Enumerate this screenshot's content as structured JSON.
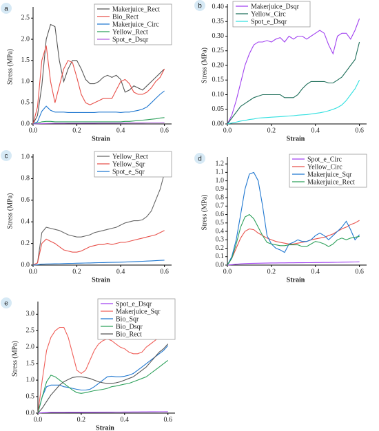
{
  "chart_data": [
    {
      "type": "line",
      "label": "a",
      "xlabel": "Strain",
      "ylabel": "Stress (MPa)",
      "legend": "upper right",
      "xlim": [
        0,
        0.62
      ],
      "ylim": [
        0,
        2.7
      ],
      "xticks": [
        {
          "value": 0,
          "label": "0.0"
        },
        0.2,
        0.4,
        0.6
      ],
      "yticks": [
        {
          "value": 0,
          "label": "0.0"
        },
        0.5,
        {
          "value": 1,
          "label": "1.0"
        },
        1.5,
        {
          "value": 2,
          "label": "2.0"
        },
        2.5
      ],
      "x": [
        0,
        0.02,
        0.04,
        0.06,
        0.08,
        0.1,
        0.12,
        0.14,
        0.16,
        0.18,
        0.2,
        0.22,
        0.24,
        0.26,
        0.28,
        0.3,
        0.32,
        0.34,
        0.36,
        0.38,
        0.4,
        0.42,
        0.44,
        0.46,
        0.48,
        0.5,
        0.52,
        0.54,
        0.56,
        0.58,
        0.6
      ],
      "series": [
        {
          "name": "Makerjuice_Rect",
          "color": "#555555",
          "values": [
            0,
            0.2,
            0.9,
            2.0,
            2.35,
            2.3,
            1.5,
            1.0,
            1.3,
            1.5,
            1.5,
            1.3,
            1.05,
            0.95,
            0.95,
            1.0,
            1.1,
            1.15,
            1.1,
            1.15,
            1.05,
            0.75,
            0.8,
            0.9,
            0.85,
            0.8,
            0.9,
            1.0,
            1.1,
            1.2,
            1.3
          ]
        },
        {
          "name": "Bio_Rect",
          "color": "#e8504a",
          "values": [
            0,
            0.4,
            1.5,
            1.85,
            1.0,
            0.5,
            0.9,
            1.3,
            1.5,
            1.45,
            1.1,
            0.7,
            0.5,
            0.45,
            0.5,
            0.55,
            0.6,
            0.6,
            0.6,
            0.8,
            1.0,
            1.05,
            0.95,
            0.75,
            0.7,
            0.7,
            0.75,
            0.85,
            1.0,
            1.1,
            1.3
          ]
        },
        {
          "name": "Makerjuice_Circ",
          "color": "#1f77d0",
          "values": [
            0,
            0.05,
            0.3,
            0.42,
            0.32,
            0.28,
            0.28,
            0.28,
            0.27,
            0.27,
            0.27,
            0.27,
            0.27,
            0.27,
            0.27,
            0.28,
            0.28,
            0.28,
            0.28,
            0.28,
            0.27,
            0.28,
            0.28,
            0.3,
            0.32,
            0.35,
            0.4,
            0.5,
            0.6,
            0.7,
            0.78
          ]
        },
        {
          "name": "Yellow_Rect",
          "color": "#2ca05a",
          "values": [
            0,
            0.02,
            0.05,
            0.06,
            0.06,
            0.05,
            0.05,
            0.05,
            0.05,
            0.05,
            0.05,
            0.05,
            0.05,
            0.05,
            0.05,
            0.05,
            0.05,
            0.05,
            0.05,
            0.05,
            0.05,
            0.06,
            0.06,
            0.07,
            0.08,
            0.09,
            0.1,
            0.11,
            0.12,
            0.14,
            0.15
          ]
        },
        {
          "name": "Spot_e_Dsqr",
          "color": "#b05ee0",
          "values": [
            0,
            0.005,
            0.01,
            0.012,
            0.013,
            0.014,
            0.015,
            0.015,
            0.016,
            0.016,
            0.017,
            0.017,
            0.018,
            0.018,
            0.018,
            0.019,
            0.019,
            0.02,
            0.02,
            0.02,
            0.021,
            0.021,
            0.022,
            0.022,
            0.023,
            0.023,
            0.024,
            0.024,
            0.025,
            0.025,
            0.026
          ]
        }
      ]
    },
    {
      "type": "line",
      "label": "b",
      "xlabel": "Strain",
      "ylabel": "Stress (MPa)",
      "legend": "upper left",
      "xlim": [
        0,
        0.62
      ],
      "ylim": [
        0,
        0.4
      ],
      "xticks": [
        {
          "value": 0,
          "label": "0.0"
        },
        0.2,
        0.4,
        0.6
      ],
      "yticks": [
        {
          "value": 0,
          "label": "0.00"
        },
        0.05,
        {
          "value": 0.1,
          "label": "0.10"
        },
        0.15,
        {
          "value": 0.2,
          "label": "0.20"
        },
        0.25,
        {
          "value": 0.3,
          "label": "0.30"
        },
        0.35,
        {
          "value": 0.4,
          "label": "0.40"
        }
      ],
      "x": [
        0,
        0.02,
        0.04,
        0.06,
        0.08,
        0.1,
        0.12,
        0.14,
        0.16,
        0.18,
        0.2,
        0.22,
        0.24,
        0.26,
        0.28,
        0.3,
        0.32,
        0.34,
        0.36,
        0.38,
        0.4,
        0.42,
        0.44,
        0.46,
        0.48,
        0.5,
        0.52,
        0.54,
        0.56,
        0.58,
        0.6
      ],
      "series": [
        {
          "name": "Makerjuice_Dsqr",
          "color": "#a040f0",
          "values": [
            0,
            0.03,
            0.08,
            0.14,
            0.2,
            0.24,
            0.27,
            0.28,
            0.28,
            0.285,
            0.28,
            0.29,
            0.295,
            0.28,
            0.3,
            0.29,
            0.3,
            0.3,
            0.29,
            0.3,
            0.31,
            0.32,
            0.31,
            0.27,
            0.24,
            0.3,
            0.31,
            0.31,
            0.29,
            0.32,
            0.36
          ]
        },
        {
          "name": "Yellow_Circ",
          "color": "#1f6f5a",
          "values": [
            0,
            0.02,
            0.04,
            0.06,
            0.07,
            0.08,
            0.09,
            0.095,
            0.1,
            0.1,
            0.1,
            0.1,
            0.1,
            0.09,
            0.09,
            0.09,
            0.1,
            0.12,
            0.135,
            0.145,
            0.145,
            0.145,
            0.145,
            0.14,
            0.14,
            0.15,
            0.16,
            0.18,
            0.2,
            0.22,
            0.28
          ]
        },
        {
          "name": "Spot_e_Dsqr",
          "color": "#30e0e0",
          "values": [
            0,
            0.003,
            0.006,
            0.01,
            0.012,
            0.015,
            0.017,
            0.02,
            0.021,
            0.022,
            0.023,
            0.024,
            0.025,
            0.026,
            0.027,
            0.028,
            0.03,
            0.031,
            0.032,
            0.034,
            0.036,
            0.038,
            0.041,
            0.045,
            0.05,
            0.056,
            0.065,
            0.08,
            0.1,
            0.12,
            0.15
          ]
        }
      ]
    },
    {
      "type": "line",
      "label": "c",
      "xlabel": "Strain",
      "ylabel": "Stress (MPa)",
      "legend": "upper right",
      "xlim": [
        0,
        0.62
      ],
      "ylim": [
        0,
        1.0
      ],
      "xticks": [
        {
          "value": 0,
          "label": "0.0"
        },
        0.2,
        0.4,
        0.6
      ],
      "yticks": [
        {
          "value": 0,
          "label": "0.0"
        },
        0.2,
        0.4,
        0.6,
        0.8,
        {
          "value": 1,
          "label": "1.0"
        }
      ],
      "x": [
        0,
        0.02,
        0.04,
        0.06,
        0.08,
        0.1,
        0.12,
        0.14,
        0.16,
        0.18,
        0.2,
        0.22,
        0.24,
        0.26,
        0.28,
        0.3,
        0.32,
        0.34,
        0.36,
        0.38,
        0.4,
        0.42,
        0.44,
        0.46,
        0.48,
        0.5,
        0.52,
        0.54,
        0.56,
        0.58,
        0.6
      ],
      "series": [
        {
          "name": "Yellow_Rect",
          "color": "#666666",
          "values": [
            0,
            0.02,
            0.3,
            0.35,
            0.34,
            0.33,
            0.32,
            0.3,
            0.28,
            0.27,
            0.26,
            0.26,
            0.27,
            0.28,
            0.3,
            0.31,
            0.32,
            0.33,
            0.34,
            0.35,
            0.37,
            0.39,
            0.4,
            0.41,
            0.41,
            0.42,
            0.45,
            0.5,
            0.6,
            0.7,
            0.85
          ]
        },
        {
          "name": "Yellow_Sqr",
          "color": "#e8504a",
          "values": [
            0,
            0.02,
            0.2,
            0.24,
            0.22,
            0.2,
            0.17,
            0.14,
            0.13,
            0.12,
            0.12,
            0.13,
            0.15,
            0.17,
            0.18,
            0.19,
            0.19,
            0.2,
            0.19,
            0.2,
            0.21,
            0.21,
            0.22,
            0.23,
            0.24,
            0.25,
            0.26,
            0.27,
            0.28,
            0.3,
            0.32
          ]
        },
        {
          "name": "Spot_e_Sqr",
          "color": "#1f77d0",
          "values": [
            0,
            0.003,
            0.008,
            0.01,
            0.011,
            0.012,
            0.013,
            0.014,
            0.015,
            0.016,
            0.017,
            0.018,
            0.019,
            0.02,
            0.021,
            0.022,
            0.023,
            0.024,
            0.025,
            0.026,
            0.027,
            0.028,
            0.03,
            0.031,
            0.033,
            0.035,
            0.037,
            0.039,
            0.041,
            0.043,
            0.045
          ]
        }
      ]
    },
    {
      "type": "line",
      "label": "d",
      "xlabel": "Strain",
      "ylabel": "Stress (MPa)",
      "legend": "upper right",
      "xlim": [
        0,
        0.62
      ],
      "ylim": [
        0,
        1.25
      ],
      "xticks": [
        {
          "value": 0,
          "label": "0.0"
        },
        0.2,
        0.4,
        0.6
      ],
      "yticks": [
        {
          "value": 0,
          "label": "0.0"
        },
        0.1,
        0.2,
        0.3,
        0.4,
        0.5,
        0.6,
        0.7,
        0.8,
        0.9,
        {
          "value": 1,
          "label": "1.0"
        },
        1.1,
        1.2
      ],
      "x": [
        0,
        0.02,
        0.04,
        0.06,
        0.08,
        0.1,
        0.12,
        0.14,
        0.16,
        0.18,
        0.2,
        0.22,
        0.24,
        0.26,
        0.28,
        0.3,
        0.32,
        0.34,
        0.36,
        0.38,
        0.4,
        0.42,
        0.44,
        0.46,
        0.48,
        0.5,
        0.52,
        0.54,
        0.56,
        0.58,
        0.6
      ],
      "series": [
        {
          "name": "Spot_e_Circ",
          "color": "#a040f0",
          "values": [
            0,
            0.005,
            0.01,
            0.015,
            0.018,
            0.02,
            0.021,
            0.022,
            0.023,
            0.024,
            0.025,
            0.025,
            0.026,
            0.026,
            0.027,
            0.027,
            0.028,
            0.028,
            0.029,
            0.029,
            0.03,
            0.03,
            0.031,
            0.031,
            0.032,
            0.033,
            0.034,
            0.035,
            0.036,
            0.037,
            0.038
          ]
        },
        {
          "name": "Yellow_Circ",
          "color": "#e8504a",
          "values": [
            0,
            0.08,
            0.2,
            0.32,
            0.4,
            0.43,
            0.42,
            0.38,
            0.35,
            0.32,
            0.3,
            0.28,
            0.27,
            0.26,
            0.25,
            0.25,
            0.26,
            0.27,
            0.28,
            0.3,
            0.31,
            0.32,
            0.33,
            0.35,
            0.37,
            0.4,
            0.43,
            0.45,
            0.48,
            0.5,
            0.53
          ]
        },
        {
          "name": "Makerjuice_Sqr",
          "color": "#1f77d0",
          "values": [
            0,
            0.1,
            0.3,
            0.6,
            0.9,
            1.08,
            1.1,
            1.0,
            0.7,
            0.35,
            0.25,
            0.2,
            0.18,
            0.15,
            0.25,
            0.27,
            0.3,
            0.28,
            0.28,
            0.3,
            0.35,
            0.38,
            0.35,
            0.3,
            0.35,
            0.4,
            0.45,
            0.52,
            0.42,
            0.3,
            0.36
          ]
        },
        {
          "name": "Makerjuice_Rect",
          "color": "#2ca05a",
          "values": [
            0,
            0.08,
            0.25,
            0.45,
            0.57,
            0.6,
            0.55,
            0.45,
            0.35,
            0.27,
            0.25,
            0.24,
            0.23,
            0.23,
            0.24,
            0.24,
            0.24,
            0.22,
            0.22,
            0.25,
            0.28,
            0.27,
            0.25,
            0.22,
            0.25,
            0.3,
            0.32,
            0.3,
            0.32,
            0.33,
            0.34
          ]
        }
      ]
    },
    {
      "type": "line",
      "label": "e",
      "xlabel": "Strain",
      "ylabel": "Stress (MPa)",
      "legend": "upper right",
      "xlim": [
        0,
        0.62
      ],
      "ylim": [
        0,
        3.3
      ],
      "xticks": [
        {
          "value": 0,
          "label": "0.0"
        },
        0.2,
        0.4,
        0.6
      ],
      "yticks": [
        {
          "value": 0,
          "label": "0.0"
        },
        0.5,
        {
          "value": 1,
          "label": "1.0"
        },
        1.5,
        {
          "value": 2,
          "label": "2.0"
        },
        2.5,
        {
          "value": 3,
          "label": "3.0"
        }
      ],
      "x": [
        0,
        0.02,
        0.04,
        0.06,
        0.08,
        0.1,
        0.12,
        0.14,
        0.16,
        0.18,
        0.2,
        0.22,
        0.24,
        0.26,
        0.28,
        0.3,
        0.32,
        0.34,
        0.36,
        0.38,
        0.4,
        0.42,
        0.44,
        0.46,
        0.48,
        0.5,
        0.52,
        0.54,
        0.56,
        0.58,
        0.6
      ],
      "series": [
        {
          "name": "Spot_e_Dsqr",
          "color": "#a040f0",
          "values": [
            0,
            0.01,
            0.015,
            0.02,
            0.02,
            0.02,
            0.021,
            0.022,
            0.022,
            0.023,
            0.024,
            0.025,
            0.025,
            0.026,
            0.027,
            0.028,
            0.029,
            0.03,
            0.031,
            0.032,
            0.033,
            0.034,
            0.035,
            0.036,
            0.037,
            0.038,
            0.039,
            0.04,
            0.041,
            0.042,
            0.043
          ]
        },
        {
          "name": "Makerjuice_Sqr",
          "color": "#f0605a",
          "values": [
            0,
            1.0,
            1.9,
            2.3,
            2.5,
            2.6,
            2.6,
            2.3,
            1.8,
            1.3,
            1.2,
            1.3,
            1.6,
            1.9,
            2.1,
            2.2,
            2.25,
            2.2,
            2.1,
            2.0,
            1.95,
            1.85,
            1.8,
            1.8,
            1.85,
            2.0,
            2.1,
            2.2,
            2.3,
            2.4,
            2.5
          ]
        },
        {
          "name": "Bio_Sqr",
          "color": "#1f77d0",
          "values": [
            0,
            0.5,
            0.8,
            0.85,
            0.85,
            0.85,
            0.8,
            0.78,
            0.75,
            0.72,
            0.7,
            0.7,
            0.72,
            0.8,
            0.9,
            1.0,
            1.1,
            1.12,
            1.1,
            1.1,
            1.12,
            1.15,
            1.2,
            1.3,
            1.4,
            1.5,
            1.6,
            1.7,
            1.8,
            1.9,
            2.05
          ]
        },
        {
          "name": "Bio_Dsqr",
          "color": "#2ca05a",
          "values": [
            0,
            0.5,
            0.95,
            1.15,
            1.1,
            1.0,
            0.9,
            0.8,
            0.7,
            0.62,
            0.6,
            0.62,
            0.65,
            0.68,
            0.7,
            0.72,
            0.75,
            0.8,
            0.82,
            0.85,
            0.88,
            0.9,
            0.95,
            1.0,
            1.05,
            1.1,
            1.2,
            1.3,
            1.4,
            1.5,
            1.6
          ]
        },
        {
          "name": "Bio_Rect",
          "color": "#555555",
          "values": [
            0,
            0.15,
            0.35,
            0.55,
            0.7,
            0.85,
            0.95,
            1.02,
            1.08,
            1.1,
            1.1,
            1.08,
            1.05,
            1.0,
            0.95,
            0.92,
            0.9,
            0.9,
            0.92,
            0.95,
            1.0,
            1.05,
            1.1,
            1.2,
            1.3,
            1.4,
            1.55,
            1.7,
            1.85,
            1.95,
            2.1
          ]
        }
      ]
    }
  ]
}
